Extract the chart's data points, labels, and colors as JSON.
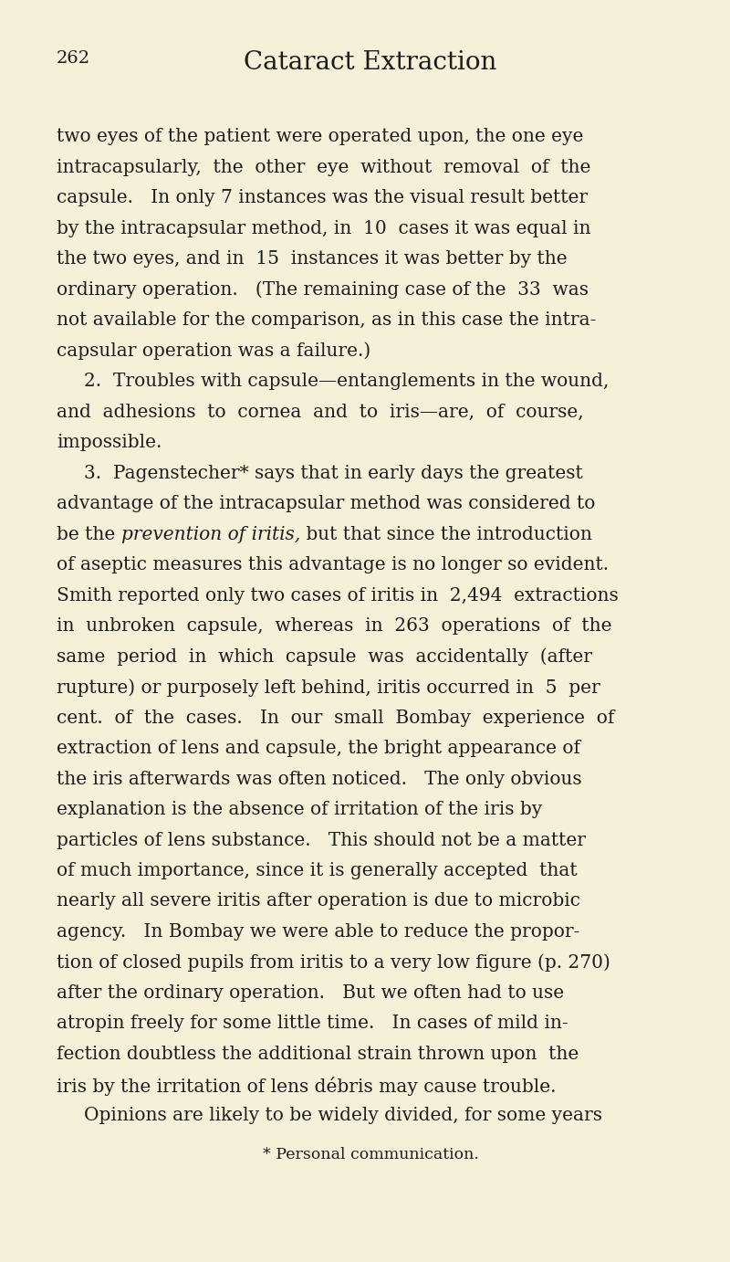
{
  "background_color": "#f5f0d8",
  "page_number": "262",
  "title": "Cataract Extraction",
  "paragraphs": [
    {
      "indent": false,
      "lines": [
        "two eyes of the patient were operated upon, the one eye",
        "intracapsularly,  the  other  eye  without  removal  of  the",
        "capsule.   In only 7 instances was the visual result better",
        "by the intracapsular method, in  10  cases it was equal in",
        "the two eyes, and in  15  instances it was better by the",
        "ordinary operation.   (The remaining case of the  33  was",
        "not available for the comparison, as in this case the intra-",
        "capsular operation was a failure.)"
      ]
    },
    {
      "indent": true,
      "lines": [
        "2.  Troubles with capsule—entanglements in the wound,",
        "and  adhesions  to  cornea  and  to  iris—are,  of  course,",
        "impossible."
      ]
    },
    {
      "indent": true,
      "lines": [
        "3.  Pagenstecher* says that in early days the greatest",
        "advantage of the intracapsular method was considered to",
        {
          "prefix": "be the ",
          "italic": "prevention of iritis,",
          "suffix": " but that since the introduction"
        },
        "of aseptic measures this advantage is no longer so evident.",
        "Smith reported only two cases of iritis in  2,494  extractions",
        "in  unbroken  capsule,  whereas  in  263  operations  of  the",
        "same  period  in  which  capsule  was  accidentally  (after",
        "rupture) or purposely left behind, iritis occurred in  5  per",
        "cent.  of  the  cases.   In  our  small  Bombay  experience  of",
        "extraction of lens and capsule, the bright appearance of",
        "the iris afterwards was often noticed.   The only obvious",
        "explanation is the absence of irritation of the iris by",
        "particles of lens substance.   This should not be a matter",
        "of much importance, since it is generally accepted  that",
        "nearly all severe iritis after operation is due to microbic",
        "agency.   In Bombay we were able to reduce the propor-",
        "tion of closed pupils from iritis to a very low figure (p. 270)",
        "after the ordinary operation.   But we often had to use",
        "atropin freely for some little time.   In cases of mild in-",
        "fection doubtless the additional strain thrown upon  the",
        "iris by the irritation of lens débris may cause trouble."
      ]
    },
    {
      "indent": true,
      "lines": [
        "Opinions are likely to be widely divided, for some years"
      ]
    }
  ],
  "footnote": "* Personal communication.",
  "text_color": "#1c1c1c",
  "title_color": "#1c1c1c"
}
